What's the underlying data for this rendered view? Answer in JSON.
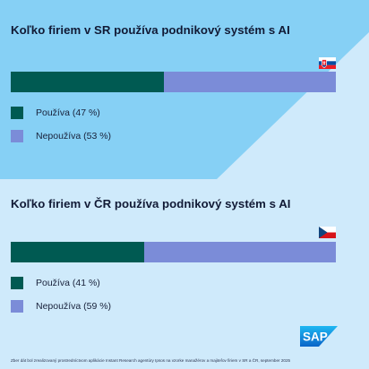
{
  "colors": {
    "background_light": "#cfeafb",
    "background_top": "#86d0f5",
    "uses": "#005a52",
    "not_uses": "#7b8cd8"
  },
  "chart_data": [
    {
      "type": "bar",
      "orientation": "horizontal-stacked",
      "title": "Koľko firiem v SR používa podnikový systém s AI",
      "flag": "slovakia-flag",
      "series": [
        {
          "name": "Používa",
          "value": 47,
          "label": "Používa (47 %)",
          "color": "#005a52"
        },
        {
          "name": "Nepoužíva",
          "value": 53,
          "label": "Nepoužíva (53 %)",
          "color": "#7b8cd8"
        }
      ],
      "unit": "%",
      "xlim": [
        0,
        100
      ]
    },
    {
      "type": "bar",
      "orientation": "horizontal-stacked",
      "title": "Koľko firiem v ČR používa podnikový systém s AI",
      "flag": "czech-flag",
      "series": [
        {
          "name": "Používa",
          "value": 41,
          "label": "Používa (41 %)",
          "color": "#005a52"
        },
        {
          "name": "Nepoužíva",
          "value": 59,
          "label": "Nepoužíva (59 %)",
          "color": "#7b8cd8"
        }
      ],
      "unit": "%",
      "xlim": [
        0,
        100
      ]
    }
  ],
  "logo": {
    "text": "SAP"
  },
  "footnote": "Zber dát bol zrealizovaný prostredníctvom aplikácie Instant Research agentúry Ipsos na vzorke manažérov a majiteľov firiem v SR a ČR, september 2025"
}
